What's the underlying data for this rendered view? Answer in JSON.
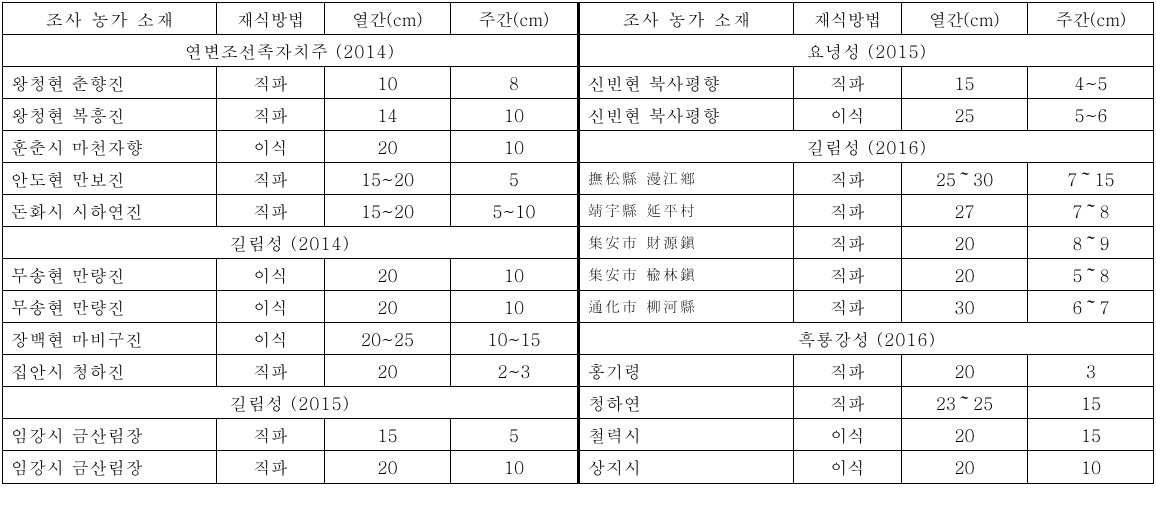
{
  "headers": {
    "location": "조사 농가 소재",
    "method": "재식방법",
    "colSpacing": "열간(cm)",
    "rowSpacing": "주간(cm)"
  },
  "left": {
    "groups": [
      {
        "title": "연변조선족자치주 (2014)",
        "rows": [
          {
            "loc": "왕청현 춘향진",
            "method": "직파",
            "col": "10",
            "row": "8"
          },
          {
            "loc": "왕청현 복흥진",
            "method": "직파",
            "col": "14",
            "row": "10"
          },
          {
            "loc": "훈춘시 마천자향",
            "method": "이식",
            "col": "20",
            "row": "10"
          },
          {
            "loc": "안도현 만보진",
            "method": "직파",
            "col": "15~20",
            "row": "5"
          },
          {
            "loc": "돈화시 시하연진",
            "method": "직파",
            "col": "15~20",
            "row": "5~10"
          }
        ]
      },
      {
        "title": "길림성 (2014)",
        "rows": [
          {
            "loc": "무송현 만량진",
            "method": "이식",
            "col": "20",
            "row": "10"
          },
          {
            "loc": "무송현 만량진",
            "method": "이식",
            "col": "20",
            "row": "10"
          },
          {
            "loc": "장백현 마비구진",
            "method": "이식",
            "col": "20~25",
            "row": "10~15"
          },
          {
            "loc": "집안시 청하진",
            "method": "직파",
            "col": "20",
            "row": "2~3"
          }
        ]
      },
      {
        "title": "길림성 (2015)",
        "rows": [
          {
            "loc": "임강시 금산림장",
            "method": "직파",
            "col": "15",
            "row": "5"
          },
          {
            "loc": "임강시 금산림장",
            "method": "직파",
            "col": "20",
            "row": "10"
          }
        ]
      }
    ]
  },
  "right": {
    "groups": [
      {
        "title": "요녕성 (2015)",
        "rows": [
          {
            "loc": "신빈현 북사평향",
            "method": "직파",
            "col": "15",
            "row": "4~5"
          },
          {
            "loc": "신빈현 북사평향",
            "method": "이식",
            "col": "25",
            "row": "5~6"
          }
        ]
      },
      {
        "title": "길림성 (2016)",
        "rows": [
          {
            "loc": "撫松縣 漫江鄕",
            "cjk": true,
            "method": "직파",
            "col": "25～30",
            "row": "7～15"
          },
          {
            "loc": "靖宇縣 延平村",
            "cjk": true,
            "method": "직파",
            "col": "27",
            "row": "7～8"
          },
          {
            "loc": "集安市 財源鎭",
            "cjk": true,
            "method": "직파",
            "col": "20",
            "row": "8～9"
          },
          {
            "loc": "集安市 楡林鎭",
            "cjk": true,
            "method": "직파",
            "col": "20",
            "row": "5～8"
          },
          {
            "loc": "通化市 柳河縣",
            "cjk": true,
            "method": "직파",
            "col": "30",
            "row": "6～7"
          }
        ]
      },
      {
        "title": "흑룡강성 (2016)",
        "rows": [
          {
            "loc": "홍기령",
            "method": "직파",
            "col": "20",
            "row": "3"
          },
          {
            "loc": "청하연",
            "method": "직파",
            "col": "23～25",
            "row": "15"
          },
          {
            "loc": "철력시",
            "method": "이식",
            "col": "20",
            "row": "15"
          },
          {
            "loc": "상지시",
            "method": "이식",
            "col": "20",
            "row": "10"
          }
        ]
      }
    ]
  }
}
